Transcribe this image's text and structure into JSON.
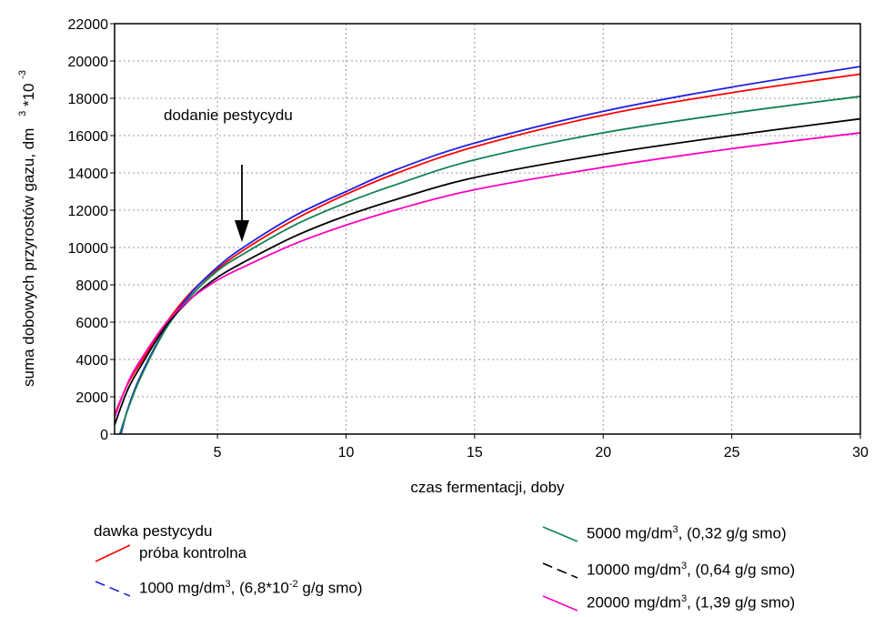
{
  "chart_data": {
    "type": "line",
    "xlabel": "czas fermentacji, doby",
    "ylabel": "suma dobowych przyrostów gazu, dm",
    "ylabel_sup": "3",
    "ylabel_suffix": "*10",
    "ylabel_suffix_sup": "-3",
    "xlim": [
      1,
      30
    ],
    "ylim": [
      0,
      22000
    ],
    "xticks": [
      5,
      10,
      15,
      20,
      25,
      30
    ],
    "yticks": [
      0,
      2000,
      4000,
      6000,
      8000,
      10000,
      12000,
      14000,
      16000,
      18000,
      20000,
      22000
    ],
    "grid": true,
    "annotation": {
      "text": "dodanie pestycydu",
      "x": 6,
      "y": 10000
    },
    "legend_title": "dawka pestycydu",
    "legend_position": "bottom",
    "series": [
      {
        "name": "próba kontrolna",
        "color": "#ff0000",
        "x": [
          1,
          1.5,
          2,
          3,
          4,
          5,
          6,
          8,
          10,
          12,
          15,
          20,
          25,
          30
        ],
        "y": [
          1050,
          2650,
          3800,
          5950,
          7650,
          8850,
          9850,
          11500,
          12850,
          14000,
          15400,
          17100,
          18300,
          19300
        ]
      },
      {
        "name": "1000 mg/dm",
        "name_sup": "3",
        "name_suffix": ", (6,8*10",
        "name_suffix_sup": "-2",
        "name_tail": " g/g smo)",
        "color": "#2020e0",
        "x": [
          1.25,
          1.5,
          2,
          3,
          4,
          5,
          6,
          8,
          10,
          12,
          15,
          20,
          25,
          30
        ],
        "y": [
          0,
          1300,
          3100,
          5700,
          7600,
          8950,
          10000,
          11700,
          13000,
          14200,
          15600,
          17300,
          18600,
          19700
        ]
      },
      {
        "name": "5000 mg/dm",
        "name_sup": "3",
        "name_suffix": ", (0,32 g/g smo)",
        "color": "#108050",
        "x": [
          1.2,
          1.5,
          2,
          3,
          4,
          5,
          6,
          8,
          10,
          12,
          15,
          20,
          25,
          30
        ],
        "y": [
          0,
          1250,
          3000,
          5650,
          7450,
          8750,
          9650,
          11200,
          12400,
          13400,
          14700,
          16150,
          17200,
          18100
        ]
      },
      {
        "name": "10000 mg/dm",
        "name_sup": "3",
        "name_suffix": ", (0,64 g/g smo)",
        "color": "#000000",
        "x": [
          1,
          1.5,
          2,
          3,
          4,
          5,
          6,
          8,
          10,
          12,
          15,
          20,
          25,
          30
        ],
        "y": [
          500,
          2350,
          3600,
          5800,
          7300,
          8400,
          9200,
          10600,
          11700,
          12600,
          13750,
          15000,
          16000,
          16900
        ]
      },
      {
        "name": "20000 mg/dm",
        "name_sup": "3",
        "name_suffix": ", (1,39 g/g smo)",
        "color": "#ff00c0",
        "x": [
          1,
          1.5,
          2,
          3,
          4,
          5,
          6,
          8,
          10,
          12,
          15,
          20,
          25,
          30
        ],
        "y": [
          900,
          2700,
          3950,
          5950,
          7300,
          8250,
          8950,
          10200,
          11200,
          12050,
          13100,
          14300,
          15300,
          16150
        ]
      }
    ]
  }
}
